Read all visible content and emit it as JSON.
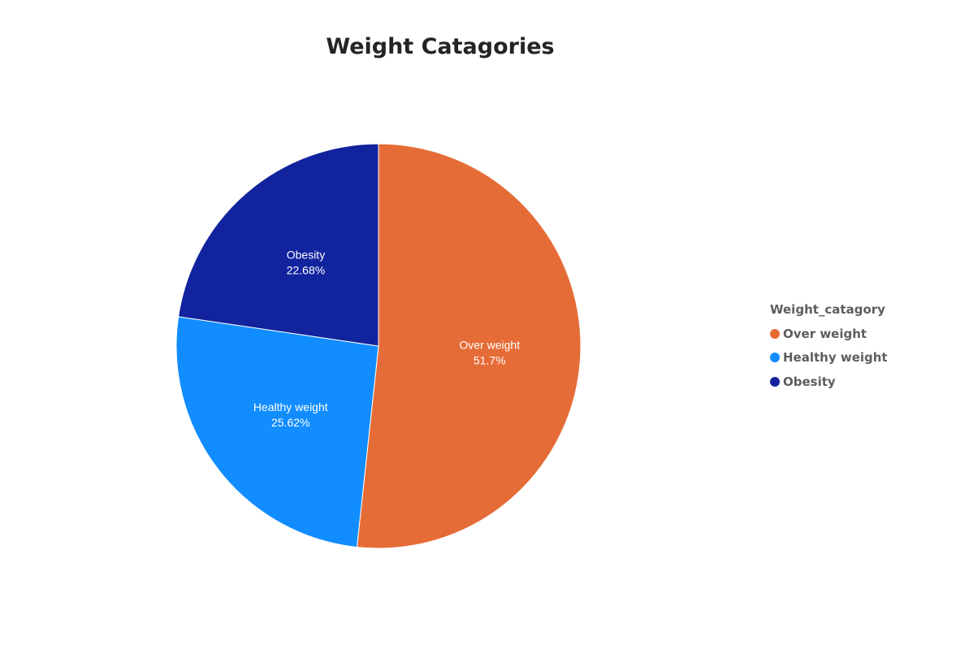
{
  "chart_data": {
    "type": "pie",
    "title": "Weight Catagories",
    "legend_title": "Weight_catagory",
    "legend_position": "right",
    "slices": [
      {
        "label": "Over weight",
        "value": 51.7,
        "value_label": "51.7%",
        "color": "#E66C37"
      },
      {
        "label": "Healthy weight",
        "value": 25.62,
        "value_label": "25.62%",
        "color": "#118DFF"
      },
      {
        "label": "Obesity",
        "value": 22.68,
        "value_label": "22.68%",
        "color": "#12239E"
      }
    ]
  }
}
